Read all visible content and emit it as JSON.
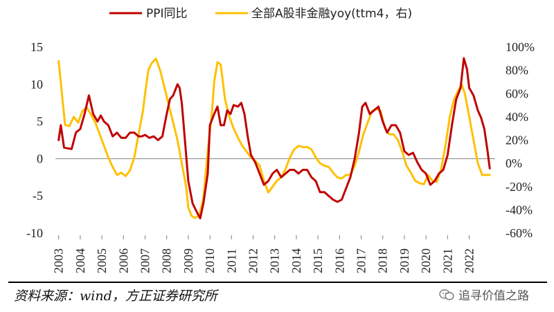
{
  "chart_data": {
    "type": "line",
    "legend_position": "top",
    "series": [
      {
        "name": "PPI同比",
        "axis": "left",
        "color": "#c00000",
        "x": [
          2003.0,
          2003.1,
          2003.25,
          2003.4,
          2003.6,
          2003.8,
          2004.0,
          2004.2,
          2004.4,
          2004.6,
          2004.8,
          2004.95,
          2005.1,
          2005.3,
          2005.5,
          2005.7,
          2005.9,
          2006.1,
          2006.3,
          2006.5,
          2006.7,
          2006.85,
          2007.0,
          2007.2,
          2007.4,
          2007.6,
          2007.8,
          2008.0,
          2008.15,
          2008.3,
          2008.5,
          2008.6,
          2008.7,
          2008.8,
          2009.0,
          2009.2,
          2009.4,
          2009.55,
          2009.7,
          2009.9,
          2010.0,
          2010.2,
          2010.35,
          2010.5,
          2010.65,
          2010.8,
          2010.95,
          2011.1,
          2011.3,
          2011.45,
          2011.6,
          2011.75,
          2011.9,
          2012.1,
          2012.3,
          2012.5,
          2012.7,
          2012.9,
          2013.1,
          2013.3,
          2013.5,
          2013.7,
          2013.9,
          2014.1,
          2014.3,
          2014.5,
          2014.7,
          2014.9,
          2015.1,
          2015.3,
          2015.5,
          2015.7,
          2015.9,
          2016.1,
          2016.3,
          2016.5,
          2016.7,
          2016.9,
          2017.05,
          2017.2,
          2017.4,
          2017.6,
          2017.8,
          2018.0,
          2018.2,
          2018.4,
          2018.6,
          2018.8,
          2019.0,
          2019.2,
          2019.4,
          2019.6,
          2019.8,
          2020.0,
          2020.2,
          2020.4,
          2020.6,
          2020.8,
          2021.0,
          2021.2,
          2021.4,
          2021.6,
          2021.75,
          2021.9,
          2022.0,
          2022.2,
          2022.4,
          2022.55,
          2022.7,
          2022.85,
          2022.95
        ],
        "y": [
          2.5,
          4.5,
          1.5,
          1.4,
          1.3,
          3.5,
          4.0,
          6.0,
          8.5,
          6.0,
          5.0,
          5.8,
          5.0,
          4.5,
          3.0,
          3.5,
          2.8,
          2.8,
          3.5,
          3.5,
          3.0,
          3.0,
          3.2,
          2.8,
          3.0,
          2.5,
          3.0,
          6.0,
          8.0,
          8.5,
          10.0,
          9.5,
          7.5,
          4.0,
          -3.0,
          -6.0,
          -7.2,
          -8.0,
          -6.0,
          -2.0,
          4.5,
          6.0,
          7.0,
          4.5,
          4.5,
          6.5,
          6.0,
          7.2,
          7.0,
          7.5,
          6.0,
          3.0,
          0.5,
          -0.5,
          -2.0,
          -3.5,
          -3.0,
          -2.0,
          -1.5,
          -2.5,
          -2.0,
          -1.5,
          -1.5,
          -2.0,
          -1.5,
          -1.5,
          -2.5,
          -3.0,
          -4.5,
          -4.5,
          -5.0,
          -5.5,
          -5.8,
          -5.5,
          -4.0,
          -2.5,
          0.0,
          3.5,
          7.0,
          7.5,
          6.0,
          6.5,
          7.0,
          5.0,
          3.5,
          4.5,
          4.5,
          3.5,
          1.0,
          0.5,
          0.8,
          -0.5,
          -1.5,
          -2.0,
          -3.5,
          -3.0,
          -2.0,
          -1.5,
          0.5,
          4.5,
          8.0,
          9.5,
          13.5,
          12.0,
          9.5,
          8.5,
          6.5,
          5.5,
          4.0,
          1.0,
          -1.3
        ]
      },
      {
        "name": "全部A股非金融yoy(ttm4，右)",
        "axis": "right",
        "color": "#ffc000",
        "x": [
          2003.0,
          2003.15,
          2003.3,
          2003.5,
          2003.7,
          2003.9,
          2004.1,
          2004.3,
          2004.5,
          2004.7,
          2004.9,
          2005.1,
          2005.3,
          2005.5,
          2005.7,
          2005.9,
          2006.1,
          2006.3,
          2006.5,
          2006.7,
          2006.9,
          2007.0,
          2007.15,
          2007.3,
          2007.5,
          2007.7,
          2007.9,
          2008.1,
          2008.3,
          2008.5,
          2008.7,
          2008.9,
          2009.0,
          2009.15,
          2009.3,
          2009.5,
          2009.7,
          2009.9,
          2010.1,
          2010.2,
          2010.35,
          2010.5,
          2010.7,
          2010.9,
          2011.1,
          2011.3,
          2011.5,
          2011.7,
          2011.9,
          2012.1,
          2012.3,
          2012.5,
          2012.7,
          2012.9,
          2013.1,
          2013.3,
          2013.5,
          2013.7,
          2013.9,
          2014.1,
          2014.3,
          2014.5,
          2014.7,
          2014.9,
          2015.1,
          2015.3,
          2015.5,
          2015.7,
          2015.9,
          2016.1,
          2016.3,
          2016.5,
          2016.7,
          2016.9,
          2017.1,
          2017.3,
          2017.5,
          2017.7,
          2017.9,
          2018.1,
          2018.3,
          2018.5,
          2018.7,
          2018.9,
          2019.1,
          2019.3,
          2019.5,
          2019.7,
          2019.9,
          2020.1,
          2020.3,
          2020.5,
          2020.7,
          2020.9,
          2021.1,
          2021.3,
          2021.5,
          2021.65,
          2021.8,
          2022.0,
          2022.2,
          2022.4,
          2022.6,
          2022.8,
          2022.95
        ],
        "y": [
          88,
          60,
          33,
          32,
          40,
          35,
          45,
          48,
          42,
          35,
          25,
          15,
          5,
          -3,
          -10,
          -8,
          -11,
          -6,
          5,
          25,
          45,
          60,
          80,
          86,
          90,
          80,
          65,
          50,
          35,
          20,
          0,
          -20,
          -38,
          -45,
          -47,
          -45,
          -30,
          10,
          45,
          70,
          87,
          85,
          55,
          40,
          30,
          22,
          15,
          10,
          5,
          2,
          -2,
          -15,
          -25,
          -20,
          -15,
          -12,
          -5,
          5,
          12,
          15,
          14,
          14,
          12,
          5,
          0,
          -2,
          -3,
          -8,
          -12,
          -13,
          -10,
          -10,
          -2,
          10,
          25,
          35,
          45,
          47,
          45,
          30,
          25,
          25,
          20,
          10,
          -2,
          -8,
          -15,
          -17,
          -18,
          -10,
          -15,
          -16,
          -5,
          15,
          40,
          55,
          63,
          68,
          60,
          40,
          20,
          0,
          -10,
          -10,
          -10
        ]
      }
    ],
    "x_ticks": [
      "2003",
      "2004",
      "2005",
      "2006",
      "2007",
      "2008",
      "2009",
      "2010",
      "2011",
      "2012",
      "2013",
      "2014",
      "2015",
      "2016",
      "2017",
      "2018",
      "2019",
      "2020",
      "2021",
      "2022"
    ],
    "y_left_ticks": [
      "15",
      "10",
      "5",
      "0",
      "-5",
      "-10"
    ],
    "y_right_ticks": [
      "100%",
      "80%",
      "60%",
      "40%",
      "20%",
      "0%",
      "-20%",
      "-40%",
      "-60%"
    ],
    "y_left_range": [
      -10,
      15
    ],
    "y_right_range": [
      -60,
      100
    ],
    "x_range": [
      2002.85,
      2023.2
    ],
    "grid": false
  },
  "source_text": "资料来源：wind，方正证券研究所",
  "watermark_text": "追寻价值之路"
}
